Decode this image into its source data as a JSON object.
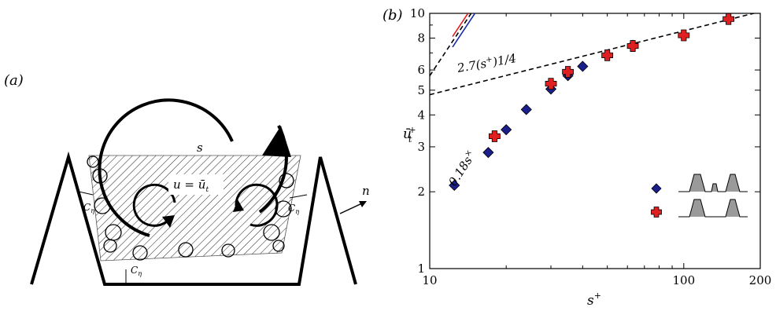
{
  "panel_a": {
    "label": "(a)",
    "s_label": "s",
    "u_label": "u = ū",
    "u_sub": "t",
    "n_label": "n",
    "c_eta_main": "C",
    "c_eta_sub": "η"
  },
  "panel_b": {
    "label": "(b)"
  },
  "chart_data": {
    "type": "scatter",
    "xscale": "log",
    "yscale": "log",
    "xlim": [
      10,
      200
    ],
    "ylim": [
      1,
      10
    ],
    "xlabel": "s",
    "xlabel_sup": "+",
    "ylabel": "ū",
    "ylabel_sub": "t",
    "ylabel_sup": "+",
    "x_ticks": [
      10,
      100,
      200
    ],
    "x_tick_labels": [
      "10",
      "100",
      "200"
    ],
    "y_ticks": [
      1,
      2,
      3,
      4,
      5,
      6,
      8,
      10
    ],
    "y_tick_labels": [
      "1",
      "2",
      "3",
      "4",
      "5",
      "6",
      "8",
      "10"
    ],
    "series": [
      {
        "marker": "diamond",
        "color": "#1a1f8c",
        "x": [
          12.5,
          17,
          20,
          24,
          30,
          35,
          40,
          63
        ],
        "y": [
          2.12,
          2.85,
          3.5,
          4.2,
          5.05,
          5.7,
          6.2,
          7.5
        ]
      },
      {
        "marker": "cross",
        "color": "#e02020",
        "x": [
          18,
          30,
          35,
          50,
          63,
          100,
          150
        ],
        "y": [
          3.3,
          5.3,
          5.9,
          6.85,
          7.45,
          8.2,
          9.5
        ]
      }
    ],
    "fit_lines": [
      {
        "style": "dashed",
        "color": "#000000",
        "coef": 0.18,
        "exp": 1.5,
        "label": "0.18s",
        "label_sup": "×"
      },
      {
        "style": "dashed",
        "color": "#000000",
        "coef": 2.7,
        "exp": 0.25,
        "label": "2.7(s",
        "label_sup": "+",
        "label_tail": ")1/4"
      },
      {
        "style": "solid",
        "color": "#1a2aa8",
        "coef": 0.171,
        "exp": 1.5
      },
      {
        "style": "solid",
        "color": "#e02020",
        "coef": 0.188,
        "exp": 1.5
      }
    ],
    "grid": false
  }
}
